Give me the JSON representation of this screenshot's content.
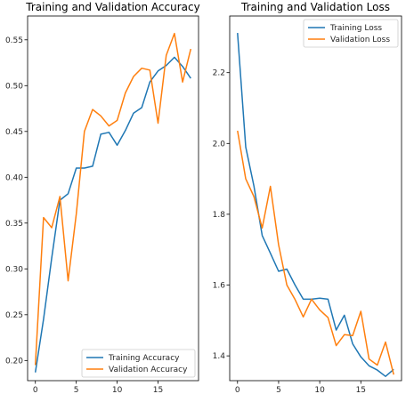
{
  "colors": {
    "training": "#1f77b4",
    "validation": "#ff7f0e",
    "axis": "#000000",
    "legend_border": "#cccccc"
  },
  "chart_data": [
    {
      "type": "line",
      "title": "Training and Validation Accuracy",
      "x": [
        0,
        1,
        2,
        3,
        4,
        5,
        6,
        7,
        8,
        9,
        10,
        11,
        12,
        13,
        14,
        15,
        16,
        17,
        18,
        19
      ],
      "xlim": [
        -0.95,
        19.95
      ],
      "ylim": [
        0.178,
        0.576
      ],
      "xticks": [
        0,
        5,
        10,
        15
      ],
      "xtick_labels": [
        "0",
        "5",
        "10",
        "15"
      ],
      "yticks": [
        0.2,
        0.25,
        0.3,
        0.35,
        0.4,
        0.45,
        0.5,
        0.55
      ],
      "ytick_labels": [
        "0.20",
        "0.25",
        "0.30",
        "0.35",
        "0.40",
        "0.45",
        "0.50",
        "0.55"
      ],
      "legend": "lower right",
      "grid": false,
      "series": [
        {
          "name": "Training Accuracy",
          "color": "#1f77b4",
          "values": [
            0.187,
            0.245,
            0.312,
            0.375,
            0.382,
            0.41,
            0.41,
            0.412,
            0.447,
            0.449,
            0.435,
            0.451,
            0.47,
            0.476,
            0.504,
            0.516,
            0.522,
            0.531,
            0.521,
            0.508
          ]
        },
        {
          "name": "Validation Accuracy",
          "color": "#ff7f0e",
          "values": [
            0.195,
            0.356,
            0.345,
            0.379,
            0.287,
            0.36,
            0.45,
            0.474,
            0.467,
            0.456,
            0.462,
            0.492,
            0.51,
            0.519,
            0.517,
            0.459,
            0.533,
            0.557,
            0.504,
            0.54
          ]
        }
      ]
    },
    {
      "type": "line",
      "title": "Training and Validation Loss",
      "x": [
        0,
        1,
        2,
        3,
        4,
        5,
        6,
        7,
        8,
        9,
        10,
        11,
        12,
        13,
        14,
        15,
        16,
        17,
        18,
        19
      ],
      "xlim": [
        -0.95,
        19.95
      ],
      "ylim": [
        1.33,
        2.36
      ],
      "xticks": [
        0,
        5,
        10,
        15
      ],
      "xtick_labels": [
        "0",
        "5",
        "10",
        "15"
      ],
      "yticks": [
        1.4,
        1.6,
        1.8,
        2.0,
        2.2
      ],
      "ytick_labels": [
        "1.4",
        "1.6",
        "1.8",
        "2.0",
        "2.2"
      ],
      "legend": "upper right",
      "grid": false,
      "series": [
        {
          "name": "Training Loss",
          "color": "#1f77b4",
          "values": [
            2.312,
            1.99,
            1.88,
            1.74,
            1.69,
            1.639,
            1.645,
            1.6,
            1.56,
            1.56,
            1.563,
            1.56,
            1.473,
            1.515,
            1.434,
            1.397,
            1.372,
            1.36,
            1.342,
            1.362
          ]
        },
        {
          "name": "Validation Loss",
          "color": "#ff7f0e",
          "values": [
            2.036,
            1.9,
            1.85,
            1.761,
            1.879,
            1.714,
            1.6,
            1.559,
            1.51,
            1.56,
            1.53,
            1.508,
            1.429,
            1.46,
            1.457,
            1.526,
            1.391,
            1.374,
            1.439,
            1.347
          ]
        }
      ]
    }
  ]
}
